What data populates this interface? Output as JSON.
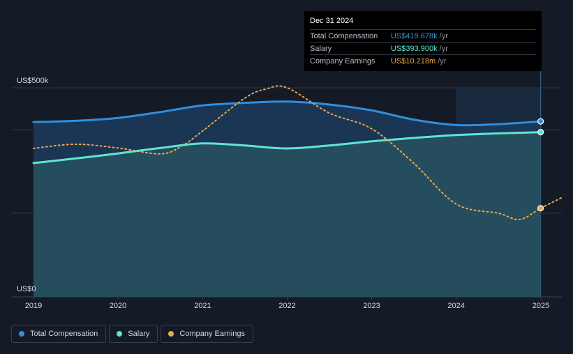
{
  "chart_data": {
    "type": "area",
    "x_start": "2019-01-01",
    "x_end": "2025-03-31",
    "x_ticks": [
      "2019",
      "2020",
      "2021",
      "2022",
      "2023",
      "2024",
      "2025"
    ],
    "y_ticks": {
      "top": "US$500k",
      "bottom": "US$0"
    },
    "ylim": [
      0,
      500
    ],
    "forecast_start": "2024-01-01",
    "series": [
      {
        "name": "Total Compensation",
        "color": "#2f8fdd",
        "style": "solid",
        "filled": true,
        "points": [
          [
            "2019-01-01",
            418
          ],
          [
            "2019-07-01",
            421
          ],
          [
            "2020-01-01",
            428
          ],
          [
            "2020-07-01",
            442
          ],
          [
            "2021-01-01",
            458
          ],
          [
            "2021-07-01",
            464
          ],
          [
            "2022-01-01",
            467
          ],
          [
            "2022-07-01",
            460
          ],
          [
            "2023-01-01",
            446
          ],
          [
            "2023-07-01",
            424
          ],
          [
            "2024-01-01",
            411
          ],
          [
            "2024-07-01",
            413
          ],
          [
            "2024-12-31",
            419.678
          ]
        ]
      },
      {
        "name": "Salary",
        "color": "#5ee6d4",
        "style": "solid",
        "filled": true,
        "points": [
          [
            "2019-01-01",
            320
          ],
          [
            "2019-07-01",
            331
          ],
          [
            "2020-01-01",
            343
          ],
          [
            "2020-07-01",
            356
          ],
          [
            "2021-01-01",
            367
          ],
          [
            "2021-07-01",
            362
          ],
          [
            "2022-01-01",
            355
          ],
          [
            "2022-07-01",
            362
          ],
          [
            "2023-01-01",
            372
          ],
          [
            "2023-07-01",
            380
          ],
          [
            "2024-01-01",
            387
          ],
          [
            "2024-07-01",
            391
          ],
          [
            "2024-12-31",
            393.9
          ]
        ]
      },
      {
        "name": "Company Earnings",
        "color": "#e8a84e",
        "style": "dotted",
        "filled": false,
        "points": [
          [
            "2019-01-01",
            355
          ],
          [
            "2019-07-01",
            365
          ],
          [
            "2020-01-01",
            356
          ],
          [
            "2020-07-01",
            342
          ],
          [
            "2020-10-01",
            360
          ],
          [
            "2021-01-01",
            397
          ],
          [
            "2021-07-01",
            475
          ],
          [
            "2021-10-01",
            497
          ],
          [
            "2022-01-01",
            500
          ],
          [
            "2022-07-01",
            440
          ],
          [
            "2023-01-01",
            402
          ],
          [
            "2023-07-01",
            320
          ],
          [
            "2024-01-01",
            222
          ],
          [
            "2024-07-01",
            200
          ],
          [
            "2024-10-01",
            185
          ],
          [
            "2024-12-31",
            212
          ],
          [
            "2025-03-31",
            237
          ]
        ]
      }
    ],
    "markers_at": "2024-12-31"
  },
  "tooltip": {
    "date": "Dec 31 2024",
    "rows": [
      {
        "label": "Total Compensation",
        "value": "US$419.678k",
        "unit": "/yr",
        "color": "#2f8fdd"
      },
      {
        "label": "Salary",
        "value": "US$393.900k",
        "unit": "/yr",
        "color": "#5ee6d4"
      },
      {
        "label": "Company Earnings",
        "value": "US$10.218m",
        "unit": "/yr",
        "color": "#e8a84e"
      }
    ]
  },
  "legend": [
    {
      "label": "Total Compensation",
      "color": "#2f8fdd"
    },
    {
      "label": "Salary",
      "color": "#5ee6d4"
    },
    {
      "label": "Company Earnings",
      "color": "#e8a84e"
    }
  ]
}
